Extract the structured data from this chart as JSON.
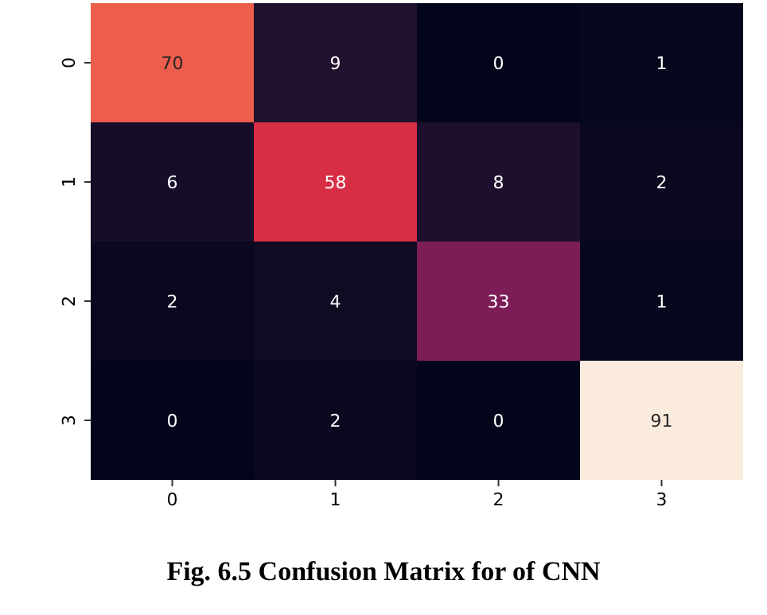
{
  "chart_data": {
    "type": "heatmap",
    "title": "Fig. 6.5 Confusion Matrix for of CNN",
    "categories": [
      "0",
      "1",
      "2",
      "3"
    ],
    "y_categories": [
      "0",
      "1",
      "2",
      "3"
    ],
    "cells": [
      [
        70,
        9,
        0,
        1
      ],
      [
        6,
        58,
        8,
        2
      ],
      [
        2,
        4,
        33,
        1
      ],
      [
        0,
        2,
        0,
        91
      ]
    ],
    "data_labels": true
  }
}
